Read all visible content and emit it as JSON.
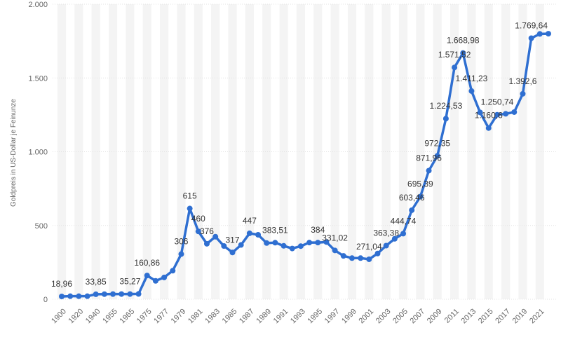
{
  "chart_data": {
    "type": "line",
    "y_axis_label": "Goldpreis in US-Dollar je Feinunze",
    "categories": [
      "1900",
      null,
      "1920",
      null,
      "1940",
      null,
      "1955",
      null,
      "1965",
      null,
      "1975",
      null,
      "1977",
      null,
      "1979",
      null,
      "1981",
      null,
      "1983",
      null,
      "1985",
      null,
      "1987",
      null,
      "1989",
      null,
      "1991",
      null,
      "1993",
      null,
      "1995",
      null,
      "1997",
      null,
      "1999",
      null,
      "2001",
      null,
      "2003",
      null,
      "2005",
      null,
      "2007",
      null,
      "2009",
      null,
      "2011",
      null,
      "2013",
      null,
      "2015",
      null,
      "2017",
      null,
      "2019",
      null,
      "2021",
      null
    ],
    "series": [
      {
        "name": "Goldpreis",
        "color": "#2f6fd1",
        "values": [
          18.96,
          20.67,
          20.68,
          20.65,
          33.85,
          34.72,
          35.0,
          35.27,
          35.27,
          36.02,
          160.86,
          124.74,
          147.84,
          193.4,
          306,
          615,
          460,
          376,
          424,
          361,
          317,
          368,
          447,
          437,
          381,
          383.51,
          362,
          344,
          360,
          384,
          384,
          388,
          331.02,
          294,
          279,
          279,
          271.04,
          310,
          363.38,
          409.72,
          444.74,
          603.46,
          695.39,
          871.96,
          972.35,
          1224.53,
          1571.52,
          1668.98,
          1411.23,
          1266.4,
          1160.6,
          1250.74,
          1257.12,
          1268.49,
          1392.6,
          1769.64,
          1798.61,
          1800
        ],
        "value_labels": [
          "18,96",
          null,
          null,
          null,
          "33,85",
          null,
          null,
          null,
          "35,27",
          null,
          "160,86",
          null,
          null,
          null,
          "306",
          "615",
          "460",
          "376",
          null,
          null,
          "317",
          null,
          "447",
          null,
          null,
          "383,51",
          null,
          null,
          null,
          null,
          "384",
          null,
          "331,02",
          null,
          null,
          null,
          "271,04",
          null,
          "363,38",
          null,
          "444,74",
          "603,46",
          "695,39",
          "871,96",
          "972,35",
          "1.224,53",
          "1.571,52",
          "1.668,98",
          "1.411,23",
          null,
          "1.160,6",
          "1.250,74",
          null,
          null,
          "1.392,6",
          "1.769,64",
          null,
          null
        ]
      }
    ],
    "ylim": [
      0,
      2000
    ],
    "yticks": [
      0,
      500,
      {
        "value": 1000,
        "label": "1.000"
      },
      {
        "value": 1500,
        "label": "1.500"
      },
      {
        "value": 2000,
        "label": "2.000"
      }
    ],
    "grid": true
  }
}
